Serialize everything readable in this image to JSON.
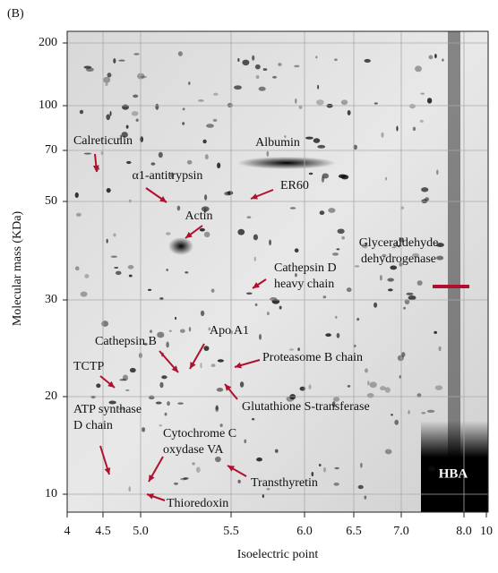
{
  "panel_label": "(B)",
  "chart_data": {
    "type": "gel",
    "xlabel": "Isoelectric point",
    "ylabel": "Molecular mass (KDa)",
    "yscale": "log",
    "xlim": [
      4,
      10
    ],
    "ylim": [
      9.2,
      220
    ],
    "xticks": [
      4,
      4.5,
      {
        "value": 5,
        "label": "5.0"
      },
      5.5,
      {
        "value": 6,
        "label": "6.0"
      },
      6.5,
      {
        "value": 7,
        "label": "7.0"
      },
      {
        "value": 8,
        "label": "8.0"
      },
      10
    ],
    "yticks": [
      10,
      20,
      30,
      50,
      70,
      100,
      200
    ],
    "grid": true,
    "annotations": [
      {
        "lines": [
          "Calreticulin"
        ]
      },
      {
        "lines": [
          "α1-antitrypsin"
        ]
      },
      {
        "lines": [
          "Albumin"
        ]
      },
      {
        "lines": [
          "ER60"
        ]
      },
      {
        "lines": [
          "Actin"
        ]
      },
      {
        "lines": [
          "Cathepsin D",
          "heavy chain"
        ]
      },
      {
        "lines": [
          "Glyceraldehyde",
          "dehydrogenase"
        ]
      },
      {
        "lines": [
          "Apo A1"
        ]
      },
      {
        "lines": [
          "Cathepsin B"
        ]
      },
      {
        "lines": [
          "Proteasome B chain"
        ]
      },
      {
        "lines": [
          "TCTP"
        ]
      },
      {
        "lines": [
          "Glutathione S-transferase"
        ]
      },
      {
        "lines": [
          "ATP synthase",
          "D chain"
        ]
      },
      {
        "lines": [
          "Cytochrome C",
          "oxydase VA"
        ]
      },
      {
        "lines": [
          "Transthyretin"
        ]
      },
      {
        "lines": [
          "Thioredoxin"
        ]
      },
      {
        "lines": [
          "HBA"
        ]
      }
    ]
  }
}
